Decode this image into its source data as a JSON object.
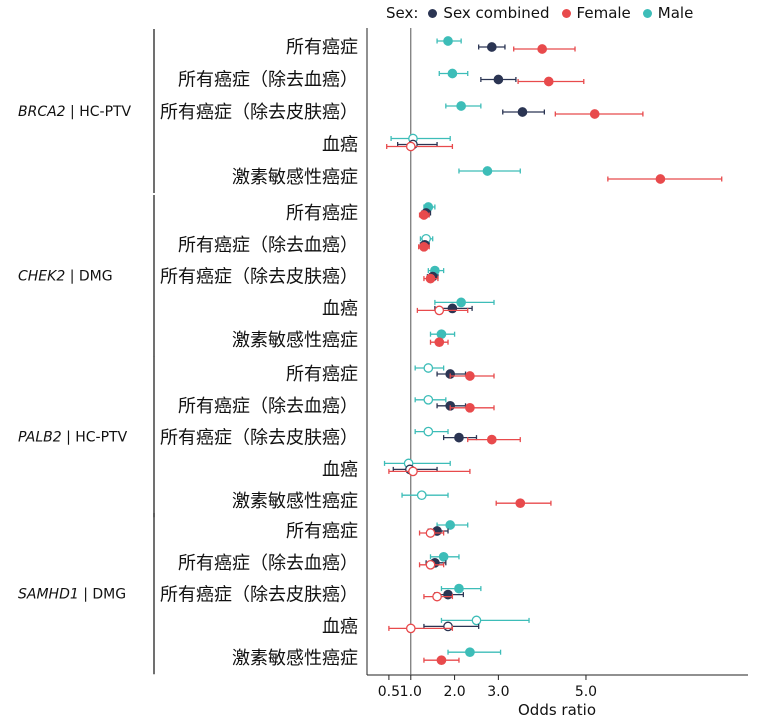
{
  "legend": {
    "title": "Sex:",
    "items": [
      {
        "name": "Sex combined",
        "color": "#2b3553"
      },
      {
        "name": "Female",
        "color": "#e84a4c"
      },
      {
        "name": "Male",
        "color": "#3dbdb8"
      }
    ]
  },
  "chart_data": {
    "type": "forest",
    "xlabel": "Odds ratio",
    "x_ticks": [
      0.5,
      1.0,
      2.0,
      3.0,
      5.0
    ],
    "x_tick_labels": [
      "0.5",
      "1.0",
      "2.0",
      "3.0",
      "5.0"
    ],
    "xlim": [
      0,
      8.7
    ],
    "reference_line": 1.0,
    "groups": [
      {
        "gene": "BRCA2",
        "label_suffix": "| HC-PTV",
        "rows": [
          {
            "label": "所有癌症",
            "male": {
              "or": 1.85,
              "lo": 1.6,
              "hi": 2.15,
              "significant": true
            },
            "combined": {
              "or": 2.85,
              "lo": 2.55,
              "hi": 3.15,
              "significant": true
            },
            "female": {
              "or": 4.0,
              "lo": 3.35,
              "hi": 4.75,
              "significant": true
            }
          },
          {
            "label": "所有癌症（除去血癌）",
            "male": {
              "or": 1.95,
              "lo": 1.65,
              "hi": 2.3,
              "significant": true
            },
            "combined": {
              "or": 3.0,
              "lo": 2.6,
              "hi": 3.4,
              "significant": true
            },
            "female": {
              "or": 4.15,
              "lo": 3.45,
              "hi": 4.95,
              "significant": true
            }
          },
          {
            "label": "所有癌症（除去皮肤癌）",
            "male": {
              "or": 2.15,
              "lo": 1.8,
              "hi": 2.6,
              "significant": true
            },
            "combined": {
              "or": 3.55,
              "lo": 3.1,
              "hi": 4.05,
              "significant": true
            },
            "female": {
              "or": 5.2,
              "lo": 4.3,
              "hi": 6.3,
              "significant": true
            }
          },
          {
            "label": "血癌",
            "male": {
              "or": 1.05,
              "lo": 0.55,
              "hi": 1.9,
              "significant": false
            },
            "combined": {
              "or": 1.05,
              "lo": 0.7,
              "hi": 1.6,
              "significant": false
            },
            "female": {
              "or": 1.0,
              "lo": 0.45,
              "hi": 1.95,
              "significant": false
            }
          },
          {
            "label": "激素敏感性癌症",
            "male": {
              "or": 2.75,
              "lo": 2.1,
              "hi": 3.5,
              "significant": true
            },
            "combined": null,
            "female": {
              "or": 6.7,
              "lo": 5.5,
              "hi": 8.1,
              "significant": true
            }
          }
        ]
      },
      {
        "gene": "CHEK2",
        "label_suffix": "| DMG",
        "rows": [
          {
            "label": "所有癌症",
            "male": {
              "or": 1.4,
              "lo": 1.3,
              "hi": 1.55,
              "significant": true
            },
            "combined": {
              "or": 1.35,
              "lo": 1.25,
              "hi": 1.45,
              "significant": true
            },
            "female": {
              "or": 1.3,
              "lo": 1.2,
              "hi": 1.42,
              "significant": true
            }
          },
          {
            "label": "所有癌症（除去血癌）",
            "male": {
              "or": 1.35,
              "lo": 1.22,
              "hi": 1.5,
              "significant": false
            },
            "combined": {
              "or": 1.32,
              "lo": 1.22,
              "hi": 1.42,
              "significant": true
            },
            "female": {
              "or": 1.3,
              "lo": 1.18,
              "hi": 1.42,
              "significant": true
            }
          },
          {
            "label": "所有癌症（除去皮肤癌）",
            "male": {
              "or": 1.55,
              "lo": 1.4,
              "hi": 1.75,
              "significant": true
            },
            "combined": {
              "or": 1.5,
              "lo": 1.38,
              "hi": 1.62,
              "significant": true
            },
            "female": {
              "or": 1.45,
              "lo": 1.3,
              "hi": 1.62,
              "significant": true
            }
          },
          {
            "label": "血癌",
            "male": {
              "or": 2.15,
              "lo": 1.55,
              "hi": 2.9,
              "significant": true
            },
            "combined": {
              "or": 1.95,
              "lo": 1.55,
              "hi": 2.4,
              "significant": true
            },
            "female": {
              "or": 1.65,
              "lo": 1.15,
              "hi": 2.3,
              "significant": false
            }
          },
          {
            "label": "激素敏感性癌症",
            "male": {
              "or": 1.7,
              "lo": 1.45,
              "hi": 2.0,
              "significant": true
            },
            "combined": null,
            "female": {
              "or": 1.65,
              "lo": 1.45,
              "hi": 1.85,
              "significant": true
            }
          }
        ]
      },
      {
        "gene": "PALB2",
        "label_suffix": "| HC-PTV",
        "rows": [
          {
            "label": "所有癌症",
            "male": {
              "or": 1.4,
              "lo": 1.1,
              "hi": 1.75,
              "significant": false
            },
            "combined": {
              "or": 1.9,
              "lo": 1.6,
              "hi": 2.25,
              "significant": true
            },
            "female": {
              "or": 2.35,
              "lo": 1.9,
              "hi": 2.9,
              "significant": true
            }
          },
          {
            "label": "所有癌症（除去血癌）",
            "male": {
              "or": 1.4,
              "lo": 1.1,
              "hi": 1.8,
              "significant": false
            },
            "combined": {
              "or": 1.9,
              "lo": 1.6,
              "hi": 2.25,
              "significant": true
            },
            "female": {
              "or": 2.35,
              "lo": 1.9,
              "hi": 2.9,
              "significant": true
            }
          },
          {
            "label": "所有癌症（除去皮肤癌）",
            "male": {
              "or": 1.4,
              "lo": 1.1,
              "hi": 1.85,
              "significant": false
            },
            "combined": {
              "or": 2.1,
              "lo": 1.75,
              "hi": 2.5,
              "significant": true
            },
            "female": {
              "or": 2.85,
              "lo": 2.3,
              "hi": 3.5,
              "significant": true
            }
          },
          {
            "label": "血癌",
            "male": {
              "or": 0.95,
              "lo": 0.4,
              "hi": 1.9,
              "significant": false
            },
            "combined": {
              "or": 0.98,
              "lo": 0.6,
              "hi": 1.6,
              "significant": false
            },
            "female": {
              "or": 1.05,
              "lo": 0.5,
              "hi": 2.35,
              "significant": false
            }
          },
          {
            "label": "激素敏感性癌症",
            "male": {
              "or": 1.25,
              "lo": 0.8,
              "hi": 1.85,
              "significant": false
            },
            "combined": null,
            "female": {
              "or": 3.5,
              "lo": 2.95,
              "hi": 4.2,
              "significant": true
            }
          }
        ]
      },
      {
        "gene": "SAMHD1",
        "label_suffix": "| DMG",
        "rows": [
          {
            "label": "所有癌症",
            "male": {
              "or": 1.9,
              "lo": 1.6,
              "hi": 2.3,
              "significant": true
            },
            "combined": {
              "or": 1.6,
              "lo": 1.4,
              "hi": 1.85,
              "significant": true
            },
            "female": {
              "or": 1.45,
              "lo": 1.2,
              "hi": 1.75,
              "significant": false
            }
          },
          {
            "label": "所有癌症（除去血癌）",
            "male": {
              "or": 1.75,
              "lo": 1.45,
              "hi": 2.1,
              "significant": true
            },
            "combined": {
              "or": 1.55,
              "lo": 1.35,
              "hi": 1.8,
              "significant": true
            },
            "female": {
              "or": 1.45,
              "lo": 1.2,
              "hi": 1.75,
              "significant": false
            }
          },
          {
            "label": "所有癌症（除去皮肤癌）",
            "male": {
              "or": 2.1,
              "lo": 1.7,
              "hi": 2.6,
              "significant": true
            },
            "combined": {
              "or": 1.85,
              "lo": 1.55,
              "hi": 2.2,
              "significant": true
            },
            "female": {
              "or": 1.6,
              "lo": 1.3,
              "hi": 1.95,
              "significant": false
            }
          },
          {
            "label": "血癌",
            "male": {
              "or": 2.5,
              "lo": 1.7,
              "hi": 3.7,
              "significant": false
            },
            "combined": {
              "or": 1.85,
              "lo": 1.3,
              "hi": 2.55,
              "significant": false
            },
            "female": {
              "or": 1.0,
              "lo": 0.5,
              "hi": 1.95,
              "significant": false
            }
          },
          {
            "label": "激素敏感性癌症",
            "male": {
              "or": 2.35,
              "lo": 1.85,
              "hi": 3.05,
              "significant": true
            },
            "combined": null,
            "female": {
              "or": 1.7,
              "lo": 1.3,
              "hi": 2.1,
              "significant": true
            }
          }
        ]
      }
    ]
  }
}
